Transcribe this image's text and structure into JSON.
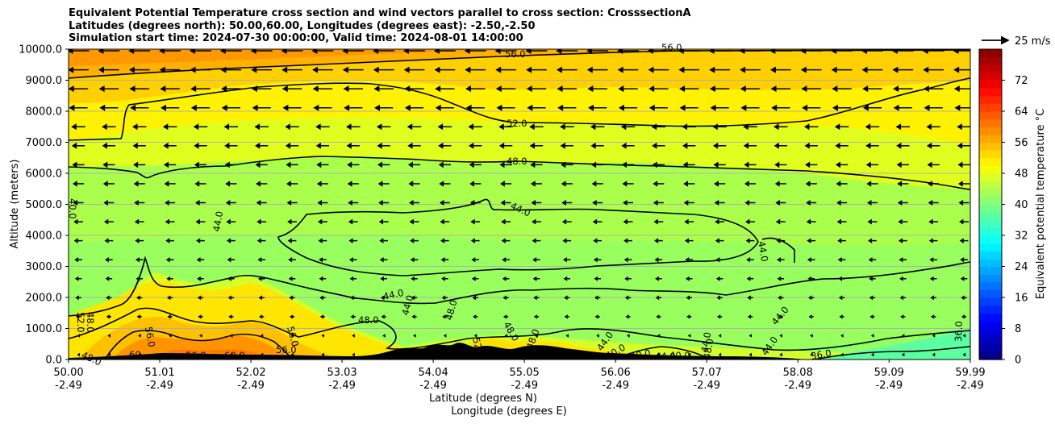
{
  "title_lines": [
    "Equivalent Potential Temperature cross section and wind vectors parallel to cross section: CrosssectionA",
    "Latitudes (degrees north): 50.00,60.00, Longitudes (degrees east): -2.50,-2.50",
    "Simulation start time: 2024-07-30 00:00:00, Valid time: 2024-08-01 14:00:00"
  ],
  "chart_data": {
    "type": "heatmap",
    "subtype": "filled-contour cross section with contour lines and quiver vectors",
    "xlabel_line1": "Latitude (degrees N)",
    "xlabel_line2": "Longitude (degrees E)",
    "ylabel": "Altitude (meters)",
    "colorbar_label": "Equivalent potential temperature $^\\circ$C",
    "colorbar_label_text": "Equivalent potential temperature °C",
    "colormap": "jet",
    "colorbar_range": [
      0,
      80
    ],
    "colorbar_ticks": [
      "0",
      "8",
      "16",
      "24",
      "32",
      "40",
      "48",
      "56",
      "64",
      "72"
    ],
    "x_ticks": [
      {
        "lat": "50.00",
        "lon": "-2.49"
      },
      {
        "lat": "51.01",
        "lon": "-2.49"
      },
      {
        "lat": "52.02",
        "lon": "-2.49"
      },
      {
        "lat": "53.03",
        "lon": "-2.49"
      },
      {
        "lat": "54.04",
        "lon": "-2.49"
      },
      {
        "lat": "55.05",
        "lon": "-2.49"
      },
      {
        "lat": "56.06",
        "lon": "-2.49"
      },
      {
        "lat": "57.07",
        "lon": "-2.49"
      },
      {
        "lat": "58.08",
        "lon": "-2.49"
      },
      {
        "lat": "59.09",
        "lon": "-2.49"
      },
      {
        "lat": "59.99",
        "lon": "-2.49"
      }
    ],
    "xlim": [
      50.0,
      59.99
    ],
    "y_ticks": [
      "0.0",
      "1000.0",
      "2000.0",
      "3000.0",
      "4000.0",
      "5000.0",
      "6000.0",
      "7000.0",
      "8000.0",
      "9000.0",
      "10000.0"
    ],
    "ylim": [
      0,
      10000
    ],
    "grid": "horizontal",
    "quiver_key": "25 m/s",
    "contour_labels": [
      "56.0",
      "56.0",
      "52.0",
      "48.0",
      "44.0",
      "44.0",
      "44.0",
      "40.0",
      "48.0",
      "52.0",
      "44.0",
      "48.0",
      "44.0",
      "48.0",
      "48.0",
      "56.0",
      "56.0",
      "60",
      "56.0",
      "60.0",
      "56.0",
      "52",
      "48.0",
      "48.0",
      "44.0",
      "40.0",
      "40.0",
      "44.0",
      "40.0",
      "44.0",
      "48.0",
      "44.0",
      "44.0",
      "36.0",
      "36.0"
    ]
  }
}
